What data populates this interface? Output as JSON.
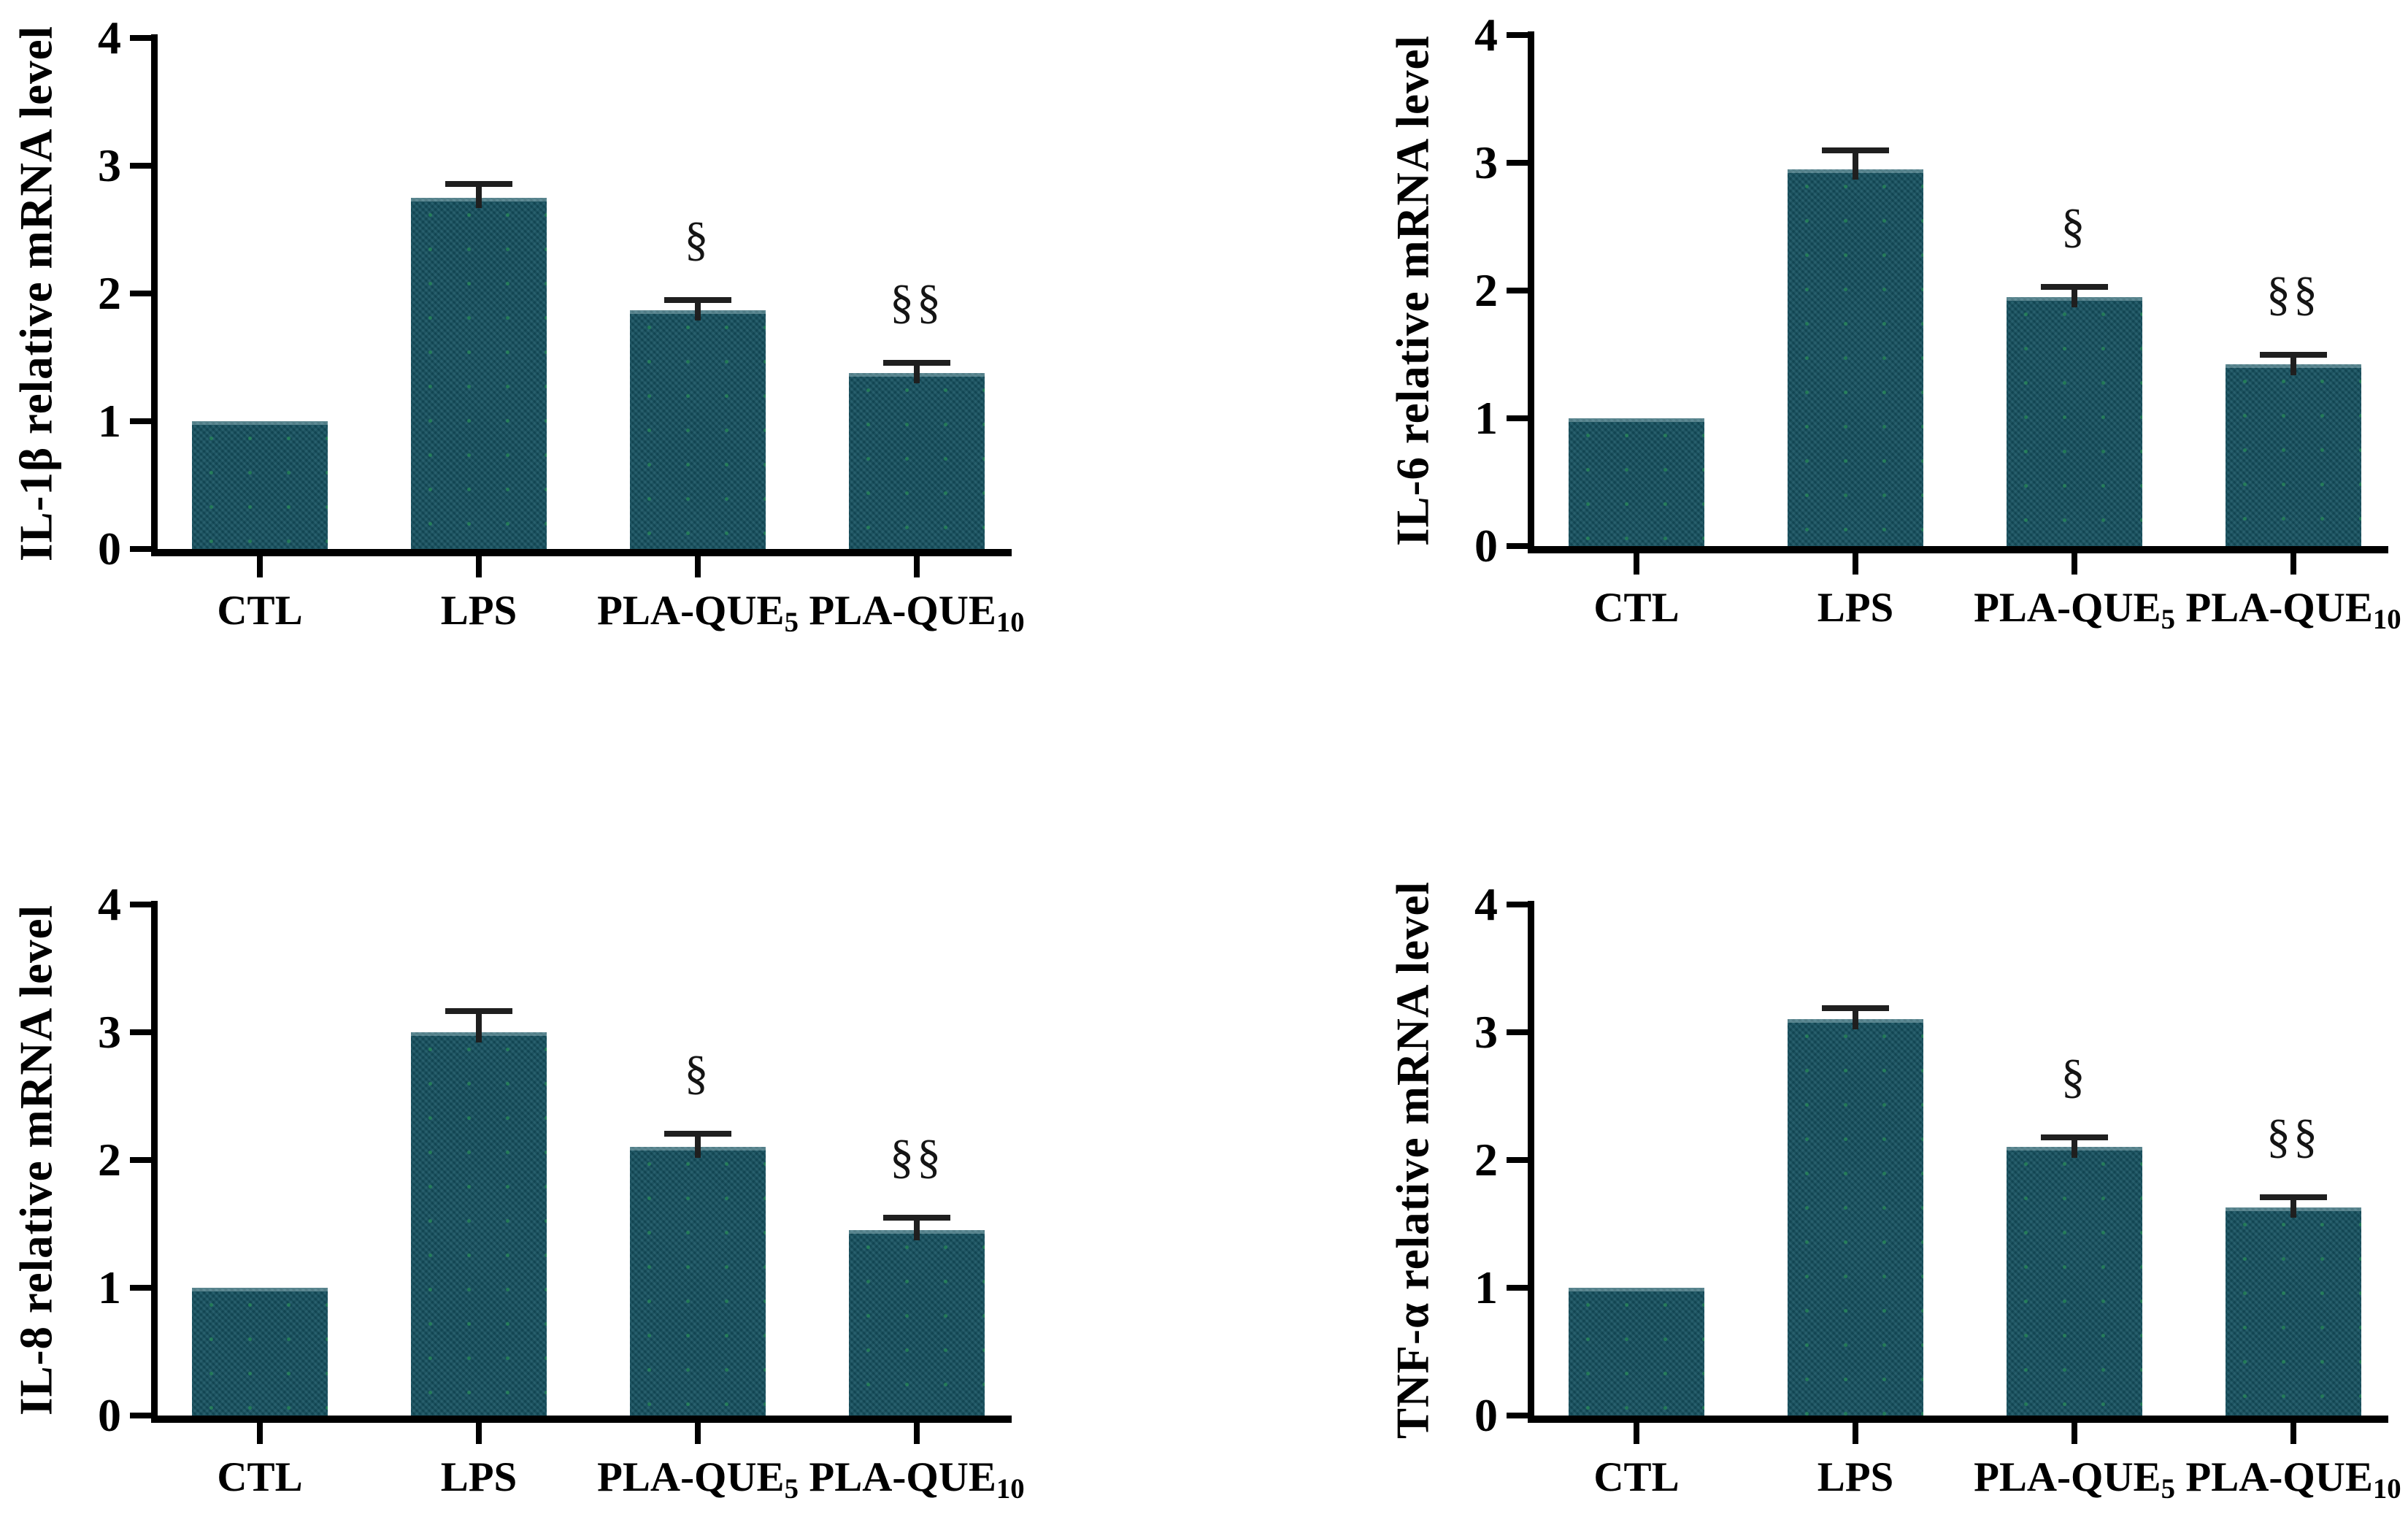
{
  "figure": {
    "description_visible_text_only": true,
    "background": "#ffffff"
  },
  "colors": {
    "bar": "#14505f",
    "axis": "#000000",
    "error_bar": "#1f1f1f",
    "text": "#000000",
    "bar_speckle": "#2c9e54"
  },
  "chart_data": [
    {
      "type": "bar",
      "ylabel": "IL-1β relative mRNA level",
      "categories": [
        {
          "base": "CTL",
          "sub": ""
        },
        {
          "base": "LPS",
          "sub": ""
        },
        {
          "base": "PLA-QUE",
          "sub": "5"
        },
        {
          "base": "PLA-QUE",
          "sub": "10"
        }
      ],
      "values": [
        1.0,
        2.75,
        1.87,
        1.38
      ],
      "errors": [
        0,
        0.13,
        0.1,
        0.1
      ],
      "annotations": [
        "",
        "",
        "§",
        "§§"
      ],
      "ylim": [
        0,
        4
      ],
      "yticks": [
        0,
        1,
        2,
        3,
        4
      ],
      "grid": false,
      "legend": "none"
    },
    {
      "type": "bar",
      "ylabel": "IL-6 relative mRNA level",
      "categories": [
        {
          "base": "CTL",
          "sub": ""
        },
        {
          "base": "LPS",
          "sub": ""
        },
        {
          "base": "PLA-QUE",
          "sub": "5"
        },
        {
          "base": "PLA-QUE",
          "sub": "10"
        }
      ],
      "values": [
        1.0,
        2.95,
        1.95,
        1.42
      ],
      "errors": [
        0,
        0.17,
        0.1,
        0.1
      ],
      "annotations": [
        "",
        "",
        "§",
        "§§"
      ],
      "ylim": [
        0,
        4
      ],
      "yticks": [
        0,
        1,
        2,
        3,
        4
      ],
      "grid": false,
      "legend": "none"
    },
    {
      "type": "bar",
      "ylabel": "IL-8 relative mRNA level",
      "categories": [
        {
          "base": "CTL",
          "sub": ""
        },
        {
          "base": "LPS",
          "sub": ""
        },
        {
          "base": "PLA-QUE",
          "sub": "5"
        },
        {
          "base": "PLA-QUE",
          "sub": "10"
        }
      ],
      "values": [
        1.0,
        3.0,
        2.1,
        1.45
      ],
      "errors": [
        0,
        0.19,
        0.13,
        0.12
      ],
      "annotations": [
        "",
        "",
        "§",
        "§§"
      ],
      "ylim": [
        0,
        4
      ],
      "yticks": [
        0,
        1,
        2,
        3,
        4
      ],
      "grid": false,
      "legend": "none"
    },
    {
      "type": "bar",
      "ylabel": "TNF-α relative mRNA level",
      "categories": [
        {
          "base": "CTL",
          "sub": ""
        },
        {
          "base": "LPS",
          "sub": ""
        },
        {
          "base": "PLA-QUE",
          "sub": "5"
        },
        {
          "base": "PLA-QUE",
          "sub": "10"
        }
      ],
      "values": [
        1.0,
        3.1,
        2.1,
        1.63
      ],
      "errors": [
        0,
        0.11,
        0.1,
        0.1
      ],
      "annotations": [
        "",
        "",
        "§",
        "§§"
      ],
      "ylim": [
        0,
        4
      ],
      "yticks": [
        0,
        1,
        2,
        3,
        4
      ],
      "grid": false,
      "legend": "none"
    }
  ]
}
